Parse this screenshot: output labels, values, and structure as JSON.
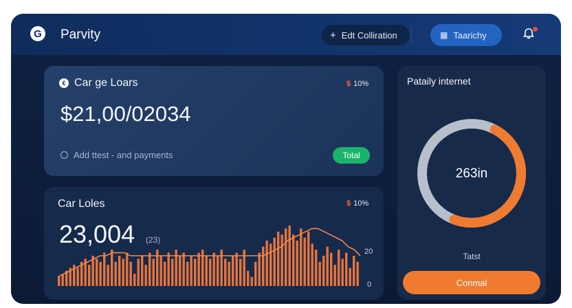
{
  "header": {
    "logo_glyph": "G",
    "title": "Parvity",
    "edit_button": "Edt Colliration",
    "tab_button": "Taarichy"
  },
  "card_loans": {
    "title": "Car ge Loars",
    "flag": "$",
    "percent": "10%",
    "amount": "$21,00/02034",
    "note": "Add ttest - and payments",
    "badge": "Total"
  },
  "card_sales": {
    "title": "Car Loles",
    "flag": "$",
    "percent": "10%",
    "value": "23,004",
    "value_sub": "(23)",
    "axis_top": "20",
    "axis_bottom": "0"
  },
  "card_interest": {
    "title": "Pataily internet",
    "center": "263in",
    "label": "Tatst",
    "button": "Conmal"
  },
  "chart_data": {
    "type": "bar",
    "ylim": [
      0,
      20
    ],
    "values": [
      3,
      4,
      5,
      6,
      7,
      6,
      8,
      9,
      7,
      10,
      9,
      8,
      11,
      7,
      12,
      8,
      10,
      9,
      11,
      8,
      4,
      9,
      10,
      7,
      11,
      9,
      12,
      10,
      8,
      11,
      9,
      12,
      10,
      11,
      8,
      10,
      9,
      11,
      12,
      10,
      9,
      11,
      10,
      12,
      9,
      8,
      10,
      11,
      9,
      12,
      5,
      3,
      8,
      11,
      13,
      15,
      14,
      16,
      18,
      17,
      19,
      20,
      17,
      15,
      19,
      16,
      18,
      14,
      12,
      8,
      10,
      13,
      11,
      7,
      12,
      9,
      11,
      6,
      10,
      8
    ],
    "trend": [
      3,
      4,
      5,
      6,
      7,
      8,
      9,
      10,
      10,
      11,
      11,
      11,
      10,
      10,
      10,
      10,
      10,
      10,
      10,
      10,
      10,
      10,
      10,
      10,
      10,
      10,
      10,
      10,
      10,
      10,
      10,
      10,
      10,
      10,
      10,
      11,
      12,
      13,
      15,
      16,
      17,
      18,
      19,
      19,
      18,
      17,
      16,
      15,
      13,
      12,
      10
    ],
    "colors": {
      "bar": "#e8743a",
      "trend": "#f08a4a"
    }
  },
  "donut_data": {
    "fraction": 0.48,
    "colors": {
      "track": "#b8bfcc",
      "fill": "#f07a30"
    }
  }
}
